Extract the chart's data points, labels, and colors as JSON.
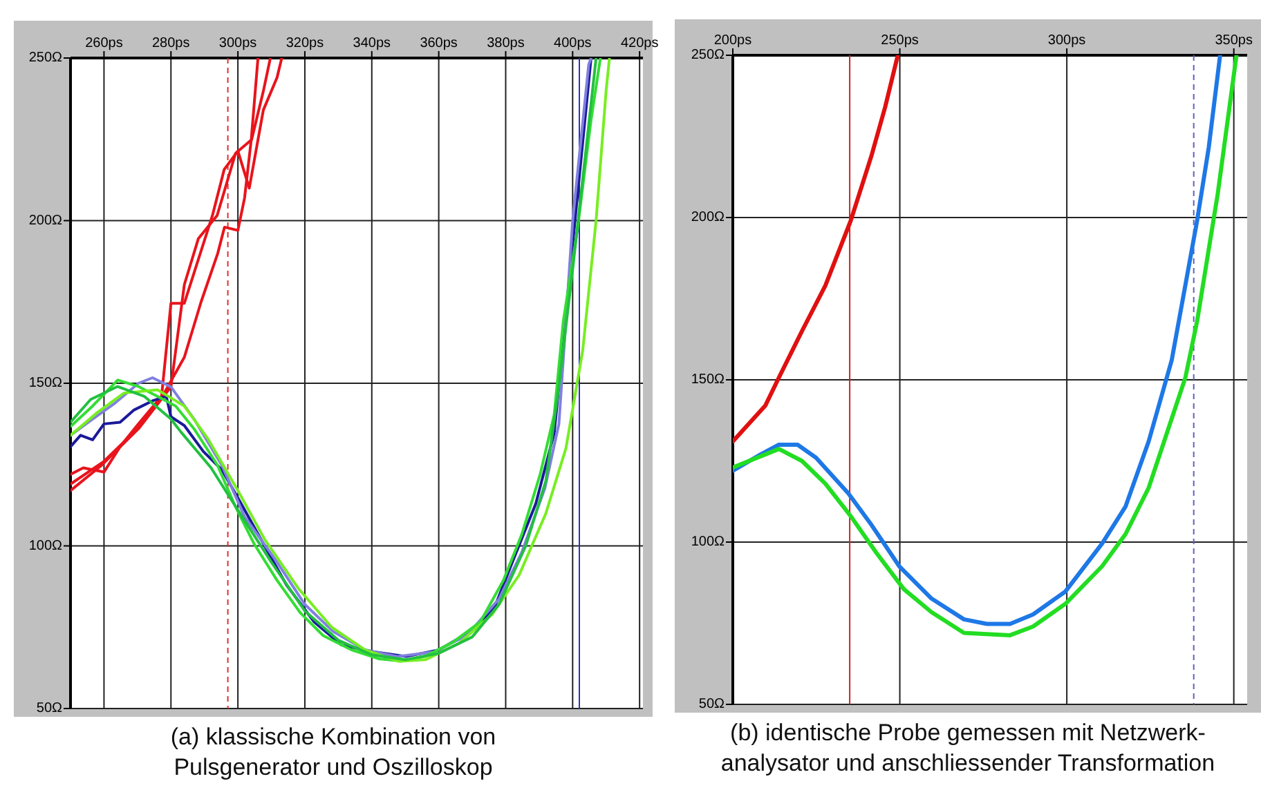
{
  "chart_data": [
    {
      "type": "line",
      "xlim": [
        250,
        421
      ],
      "ylim": [
        50,
        250
      ],
      "xticks": [
        {
          "value": 260,
          "label": "260ps"
        },
        {
          "value": 280,
          "label": "280ps"
        },
        {
          "value": 300,
          "label": "300ps"
        },
        {
          "value": 320,
          "label": "320ps"
        },
        {
          "value": 340,
          "label": "340ps"
        },
        {
          "value": 360,
          "label": "360ps"
        },
        {
          "value": 380,
          "label": "380ps"
        },
        {
          "value": 400,
          "label": "400ps"
        },
        {
          "value": 420,
          "label": "420ps"
        }
      ],
      "yticks": [
        {
          "value": 50,
          "label": "50Ω"
        },
        {
          "value": 100,
          "label": "100Ω"
        },
        {
          "value": 150,
          "label": "150Ω"
        },
        {
          "value": 200,
          "label": "200Ω"
        },
        {
          "value": 250,
          "label": "250Ω"
        }
      ],
      "grid": true,
      "ref_lines": [
        {
          "axis": "x",
          "value": 297,
          "color": "#e03030",
          "line_style": "dashed"
        },
        {
          "axis": "x",
          "value": 402,
          "color": "#3030c0",
          "line_style": "solid"
        }
      ],
      "annotations": [
        "(a) klassische Kombination von\nPulsgenerator und Oszilloskop"
      ],
      "series": [
        {
          "color": "#e8141c",
          "x": [
            250,
            259.3,
            270.3,
            280,
            284,
            288.2,
            293.8,
            299.3,
            304.1,
            307.6,
            309.7
          ],
          "values": [
            117,
            124.8,
            136,
            148.9,
            180.3,
            194.5,
            201.6,
            220.7,
            224.9,
            239.8,
            250
          ]
        },
        {
          "color": "#e8141c",
          "x": [
            250,
            253.8,
            260,
            264.8,
            270.3,
            277.2,
            280,
            284,
            292.4,
            295.9,
            300,
            303.4,
            307.6,
            311.7,
            313.1
          ],
          "values": [
            122,
            124,
            122.7,
            130.5,
            137.5,
            146,
            174.6,
            174.6,
            201.6,
            215.7,
            221.4,
            210,
            234,
            244,
            250
          ]
        },
        {
          "color": "#e8141c",
          "x": [
            250,
            260,
            270,
            278,
            284,
            289,
            294,
            296,
            300,
            302,
            304,
            306
          ],
          "values": [
            119,
            126,
            136,
            147,
            158,
            175,
            190,
            198,
            197,
            207,
            225,
            250
          ]
        },
        {
          "color": "#1a1a9a",
          "x": [
            250,
            253,
            256.6,
            260,
            264.8,
            269,
            274.5,
            278.6,
            280,
            284,
            289.7,
            295.2,
            300.7,
            307.6,
            314.5,
            322.8,
            331,
            340.7,
            350.3,
            360,
            369.7,
            376.6,
            382,
            389,
            394.5,
            400.7,
            405.5
          ],
          "values": [
            130.5,
            134,
            132.6,
            137.5,
            138,
            141.8,
            144.6,
            146,
            139.7,
            137,
            129,
            123.4,
            113.5,
            100.7,
            88,
            76.6,
            69.5,
            67.4,
            66,
            68,
            73.8,
            80.9,
            95,
            113,
            134.7,
            200,
            250
          ]
        },
        {
          "color": "#8080e0",
          "x": [
            250,
            256.6,
            263.4,
            270.3,
            274.5,
            280,
            286.9,
            295.2,
            302,
            311.7,
            320,
            328.3,
            338,
            347.6,
            358.6,
            368.3,
            378,
            384.8,
            391.7,
            395.9,
            400,
            404.8,
            405.5
          ],
          "values": [
            134,
            139,
            144,
            150,
            151.7,
            148.9,
            139,
            124.8,
            109,
            95,
            82,
            73.8,
            68,
            66,
            67.4,
            72.4,
            83.7,
            98,
            117.7,
            137.5,
            200,
            248,
            250
          ]
        },
        {
          "color": "#33dd33",
          "x": [
            250.1,
            256.6,
            264.1,
            270.3,
            275.9,
            281.4,
            286.9,
            293.8,
            299.3,
            304.8,
            311.7,
            318.6,
            325.5,
            333.8,
            342,
            348.9,
            355.9,
            364.1,
            372.4,
            379.3,
            384.8,
            390.3,
            394.5,
            397.2,
            401.4,
            405.5,
            408.3
          ],
          "values": [
            136.8,
            143,
            151,
            149,
            146,
            143,
            136,
            125,
            112,
            100.7,
            89.4,
            79.5,
            72.4,
            68.1,
            65.3,
            64.6,
            66,
            70.3,
            76.6,
            89.4,
            103.5,
            122,
            140.4,
            169,
            197,
            231,
            250
          ]
        },
        {
          "color": "#77ee22",
          "x": [
            250,
            258,
            266,
            276,
            284,
            291,
            300,
            308,
            318,
            328,
            338,
            348,
            356,
            366,
            376,
            384,
            392,
            398,
            403,
            407,
            410,
            411
          ],
          "values": [
            134,
            141,
            147,
            148,
            143,
            133,
            117,
            102,
            87,
            75,
            68,
            64.5,
            65,
            70,
            79,
            91,
            110,
            130,
            160,
            200,
            240,
            250
          ]
        },
        {
          "color": "#22c040",
          "x": [
            250,
            256,
            264,
            272,
            280,
            283,
            292,
            300,
            310,
            320,
            330,
            340,
            350,
            360,
            370,
            378,
            386,
            392,
            396,
            400,
            404,
            407
          ],
          "values": [
            138,
            145,
            149,
            146,
            139,
            135,
            124,
            111,
            95,
            80,
            71,
            66.5,
            65,
            67,
            72,
            82,
            100,
            120,
            150,
            185,
            222,
            250
          ]
        }
      ]
    },
    {
      "type": "line",
      "xlim": [
        200,
        354
      ],
      "ylim": [
        50,
        250
      ],
      "xticks": [
        {
          "value": 200,
          "label": "200ps"
        },
        {
          "value": 250,
          "label": "250ps"
        },
        {
          "value": 300,
          "label": "300ps"
        },
        {
          "value": 350,
          "label": "350ps"
        }
      ],
      "yticks": [
        {
          "value": 50,
          "label": "50Ω"
        },
        {
          "value": 100,
          "label": "100Ω"
        },
        {
          "value": 150,
          "label": "150Ω"
        },
        {
          "value": 200,
          "label": "200Ω"
        },
        {
          "value": 250,
          "label": "250Ω"
        }
      ],
      "grid": true,
      "ref_lines": [
        {
          "axis": "x",
          "value": 235,
          "color": "#d02020",
          "line_style": "solid"
        },
        {
          "axis": "x",
          "value": 338,
          "color": "#6060c0",
          "line_style": "dashed"
        }
      ],
      "annotations": [
        "(b) identische Probe gemessen mit Netzwerk-\nanalysator und anschliessender Transformation"
      ],
      "series": [
        {
          "color": "#e01010",
          "x": [
            200,
            209.7,
            213.8,
            220.7,
            227.7,
            235.3,
            241.5,
            245.6,
            249.4
          ],
          "values": [
            131,
            142,
            150.7,
            165,
            179,
            199,
            219,
            234,
            250
          ]
        },
        {
          "color": "#1e78e6",
          "x": [
            200,
            208.3,
            213.8,
            219.4,
            224.9,
            234.6,
            241.5,
            249.8,
            259.5,
            269.2,
            276.1,
            283,
            289.9,
            299.6,
            310.6,
            317.6,
            324.5,
            331.4,
            339,
            342.5,
            345.9
          ],
          "values": [
            122,
            127,
            130,
            130,
            126,
            115,
            105.3,
            92.6,
            82.6,
            76.2,
            74.8,
            74.8,
            77.7,
            84.8,
            99.6,
            111,
            131,
            156,
            199,
            221.6,
            250
          ]
        },
        {
          "color": "#22dd22",
          "x": [
            200,
            213.8,
            220.7,
            227.7,
            235.3,
            242.9,
            251.2,
            259.5,
            269.2,
            283,
            289.9,
            299.6,
            310.6,
            317.6,
            324.5,
            335.5,
            339,
            345.2,
            350.8
          ],
          "values": [
            123,
            128.7,
            125,
            118,
            108,
            96.8,
            85.5,
            78.4,
            72,
            71.3,
            74,
            81,
            92.6,
            102.5,
            116.7,
            150.7,
            168,
            207.4,
            250
          ]
        }
      ]
    }
  ]
}
